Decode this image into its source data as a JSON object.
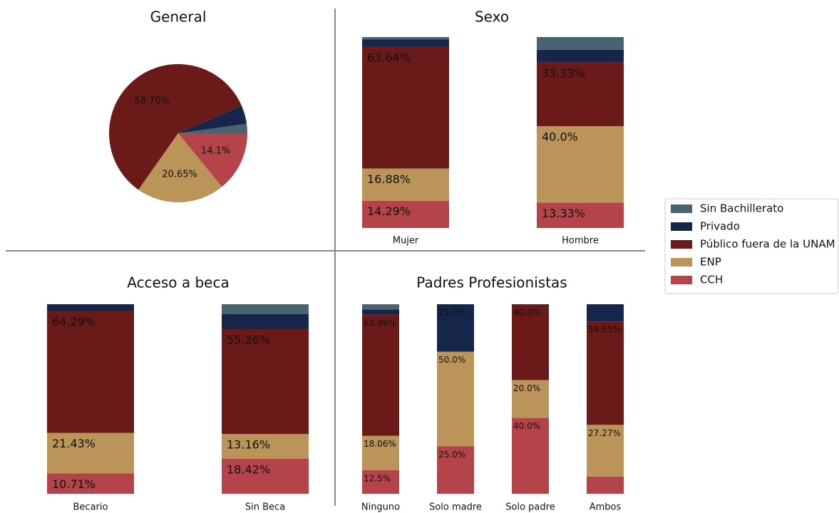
{
  "chart_data": [
    {
      "type": "pie",
      "title": "General",
      "categories": [
        "Sin Bachillerato",
        "Privado",
        "Público fuera de la UNAM",
        "ENP",
        "CCH"
      ],
      "values": [
        2.17,
        4.35,
        58.7,
        20.65,
        14.1
      ],
      "value_labels": [
        null,
        null,
        "58.70%",
        "20.65%",
        "14.1%"
      ],
      "colors": [
        "#4a6370",
        "#15264a",
        "#6b1a1a",
        "#bb9459",
        "#b5434a"
      ]
    },
    {
      "type": "bar",
      "title": "Sexo",
      "stacked": true,
      "categories": [
        "Mujer",
        "Hombre"
      ],
      "series": [
        {
          "name": "CCH",
          "color": "#b5434a",
          "values": [
            14.29,
            13.33
          ],
          "value_labels": [
            "14.29%",
            "13.33%"
          ]
        },
        {
          "name": "ENP",
          "color": "#bb9459",
          "values": [
            16.88,
            40.0
          ],
          "value_labels": [
            "16.88%",
            "40.0%"
          ]
        },
        {
          "name": "Público fuera de la UNAM",
          "color": "#6b1a1a",
          "values": [
            63.64,
            33.33
          ],
          "value_labels": [
            "63.64%",
            "33.33%"
          ]
        },
        {
          "name": "Privado",
          "color": "#15264a",
          "values": [
            3.9,
            6.67
          ],
          "value_labels": [
            null,
            null
          ]
        },
        {
          "name": "Sin Bachillerato",
          "color": "#4a6370",
          "values": [
            1.3,
            6.67
          ],
          "value_labels": [
            null,
            null
          ]
        }
      ]
    },
    {
      "type": "bar",
      "title": "Acceso a beca",
      "stacked": true,
      "categories": [
        "Becario",
        "Sin Beca"
      ],
      "series": [
        {
          "name": "CCH",
          "color": "#b5434a",
          "values": [
            10.71,
            18.42
          ],
          "value_labels": [
            "10.71%",
            "18.42%"
          ]
        },
        {
          "name": "ENP",
          "color": "#bb9459",
          "values": [
            21.43,
            13.16
          ],
          "value_labels": [
            "21.43%",
            "13.16%"
          ]
        },
        {
          "name": "Público fuera de la UNAM",
          "color": "#6b1a1a",
          "values": [
            64.29,
            55.26
          ],
          "value_labels": [
            "64.29%",
            "55.26%"
          ]
        },
        {
          "name": "Privado",
          "color": "#15264a",
          "values": [
            3.57,
            7.89
          ],
          "value_labels": [
            null,
            null
          ]
        },
        {
          "name": "Sin Bachillerato",
          "color": "#4a6370",
          "values": [
            0,
            5.26
          ],
          "value_labels": [
            null,
            null
          ]
        }
      ]
    },
    {
      "type": "bar",
      "title": "Padres Profesionistas",
      "stacked": true,
      "categories": [
        "Ninguno",
        "Solo madre",
        "Solo padre",
        "Ambos"
      ],
      "series": [
        {
          "name": "CCH",
          "color": "#b5434a",
          "values": [
            12.5,
            25.0,
            40.0,
            9.09
          ],
          "value_labels": [
            "12.5%",
            "25.0%",
            "40.0%",
            null
          ]
        },
        {
          "name": "ENP",
          "color": "#bb9459",
          "values": [
            18.06,
            50.0,
            20.0,
            27.27
          ],
          "value_labels": [
            "18.06%",
            "50.0%",
            "20.0%",
            "27.27%"
          ]
        },
        {
          "name": "Público fuera de la UNAM",
          "color": "#6b1a1a",
          "values": [
            63.89,
            0,
            40.0,
            54.55
          ],
          "value_labels": [
            "63.89%",
            null,
            "40.0%",
            "54.55%"
          ]
        },
        {
          "name": "Privado",
          "color": "#15264a",
          "values": [
            2.78,
            25.0,
            0,
            9.09
          ],
          "value_labels": [
            null,
            "25.0%",
            null,
            null
          ]
        },
        {
          "name": "Sin Bachillerato",
          "color": "#4a6370",
          "values": [
            2.78,
            0,
            0,
            0
          ],
          "value_labels": [
            null,
            null,
            null,
            null
          ]
        }
      ]
    }
  ]
}
